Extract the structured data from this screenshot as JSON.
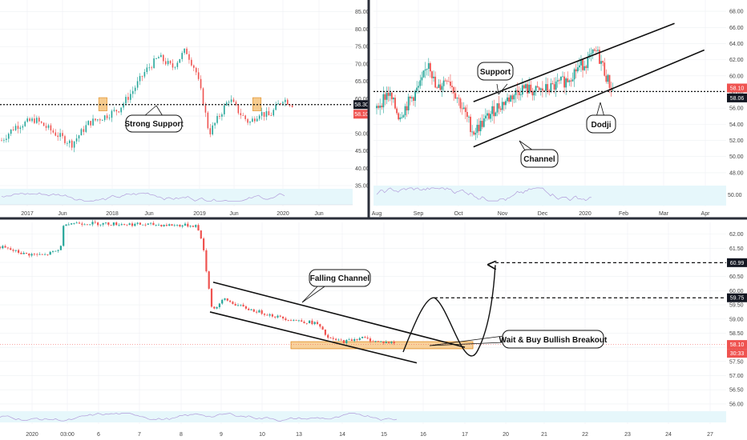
{
  "chart_data": [
    {
      "panel": "long-term",
      "type": "candlestick",
      "x_ticks": [
        "2017",
        "Jun",
        "2018",
        "Jun",
        "2019",
        "Jun",
        "2020",
        "Jun"
      ],
      "y_ticks": [
        "85.00",
        "80.00",
        "75.00",
        "70.00",
        "65.00",
        "60.00",
        "55.00",
        "50.00",
        "45.00",
        "40.00",
        "35.00"
      ],
      "ylim": [
        35,
        87
      ],
      "price_badges": [
        "58.30",
        "58.10"
      ],
      "support_level": 58.3,
      "close_path": [
        [
          0,
          48
        ],
        [
          8,
          52
        ],
        [
          20,
          54
        ],
        [
          32,
          50
        ],
        [
          42,
          47
        ],
        [
          52,
          53
        ],
        [
          62,
          55
        ],
        [
          70,
          57
        ],
        [
          78,
          62
        ],
        [
          86,
          68
        ],
        [
          94,
          72
        ],
        [
          102,
          69
        ],
        [
          110,
          74
        ],
        [
          116,
          68
        ],
        [
          120,
          60
        ],
        [
          124,
          50
        ],
        [
          130,
          55
        ],
        [
          136,
          60
        ],
        [
          142,
          56
        ],
        [
          148,
          53
        ],
        [
          154,
          56
        ],
        [
          160,
          55
        ],
        [
          168,
          60
        ],
        [
          174,
          58.3
        ]
      ],
      "support_zones": [
        [
          58,
          63,
          56.5,
          60.3
        ],
        [
          150,
          155,
          56.5,
          60.3
        ]
      ],
      "annotations": [
        "Strong Support"
      ],
      "rsi_pane": true
    },
    {
      "panel": "daily",
      "type": "candlestick",
      "x_ticks": [
        "Aug",
        "Sep",
        "Oct",
        "Nov",
        "Dec",
        "2020",
        "Feb",
        "Mar",
        "Apr"
      ],
      "y_ticks": [
        "68.00",
        "66.00",
        "64.00",
        "62.00",
        "60.00",
        "58.00",
        "56.00",
        "54.00",
        "52.00",
        "50.00",
        "48.00"
      ],
      "ylim": [
        47,
        69
      ],
      "price_badges": [
        "58.10",
        "58.06"
      ],
      "support_level": 58.06,
      "close_path": [
        [
          0,
          56
        ],
        [
          6,
          58
        ],
        [
          12,
          55
        ],
        [
          18,
          57
        ],
        [
          24,
          59
        ],
        [
          28,
          62
        ],
        [
          32,
          58
        ],
        [
          38,
          60
        ],
        [
          44,
          57
        ],
        [
          48,
          55
        ],
        [
          52,
          53
        ],
        [
          58,
          54.5
        ],
        [
          64,
          56
        ],
        [
          70,
          57
        ],
        [
          78,
          58.5
        ],
        [
          86,
          58
        ],
        [
          94,
          58.5
        ],
        [
          102,
          59.5
        ],
        [
          108,
          61
        ],
        [
          114,
          62
        ],
        [
          118,
          63
        ],
        [
          121,
          61.5
        ],
        [
          124,
          59.5
        ],
        [
          127,
          58.1
        ]
      ],
      "channel_upper": [
        [
          52,
          56.8
        ],
        [
          160,
          66.5
        ]
      ],
      "channel_lower": [
        [
          52,
          51.2
        ],
        [
          176,
          63.2
        ]
      ],
      "annotations": [
        "Support",
        "Channel",
        "Dodji"
      ],
      "rsi_pane": true,
      "rsi_axis_label": "50.00"
    },
    {
      "panel": "intraday",
      "type": "candlestick",
      "x_ticks": [
        "2020",
        "03:00",
        "6",
        "7",
        "8",
        "9",
        "10",
        "13",
        "14",
        "15",
        "16",
        "17",
        "20",
        "21",
        "22",
        "23",
        "24",
        "27"
      ],
      "y_ticks": [
        "62.00",
        "61.50",
        "61.00",
        "60.50",
        "60.00",
        "59.50",
        "59.00",
        "58.50",
        "58.00",
        "57.50",
        "57.00",
        "56.50",
        "56.00"
      ],
      "ylim": [
        55.8,
        62.3
      ],
      "price_badges": [
        "60.99",
        "59.75",
        "58.10",
        "30:33"
      ],
      "close_path": [
        [
          0,
          61.55
        ],
        [
          30,
          61.3
        ],
        [
          55,
          61.25
        ],
        [
          75,
          61.45
        ],
        [
          80,
          62.4
        ],
        [
          245,
          62.3
        ],
        [
          252,
          61.8
        ],
        [
          260,
          60.2
        ],
        [
          265,
          59.3
        ],
        [
          280,
          59.7
        ],
        [
          295,
          59.5
        ],
        [
          310,
          59.35
        ],
        [
          330,
          59.2
        ],
        [
          350,
          59.05
        ],
        [
          370,
          58.95
        ],
        [
          395,
          58.85
        ],
        [
          410,
          58.3
        ],
        [
          430,
          58.2
        ],
        [
          450,
          58.35
        ],
        [
          470,
          58.2
        ],
        [
          495,
          58.15
        ]
      ],
      "channel_upper": [
        [
          266,
          60.3
        ],
        [
          580,
          58.0
        ]
      ],
      "channel_lower": [
        [
          262,
          59.25
        ],
        [
          520,
          57.45
        ]
      ],
      "buy_zone": [
        [
          363,
          590
        ],
        [
          57.95,
          58.2
        ]
      ],
      "target_levels": [
        60.99,
        59.75
      ],
      "annotations": [
        "Falling Channel",
        "Wait & Buy Bullish Breakout"
      ],
      "rsi_pane": true
    }
  ],
  "colors": {
    "bull": "#26a69a",
    "bear": "#ef5350",
    "text": "#111111",
    "zone_fill": "#f5c27a",
    "zone_stroke": "#e08a1e",
    "rsi_band": "#e6f7fb",
    "badge_dark": "#131722",
    "badge_red": "#ef5350",
    "divider": "#2a2e39"
  }
}
